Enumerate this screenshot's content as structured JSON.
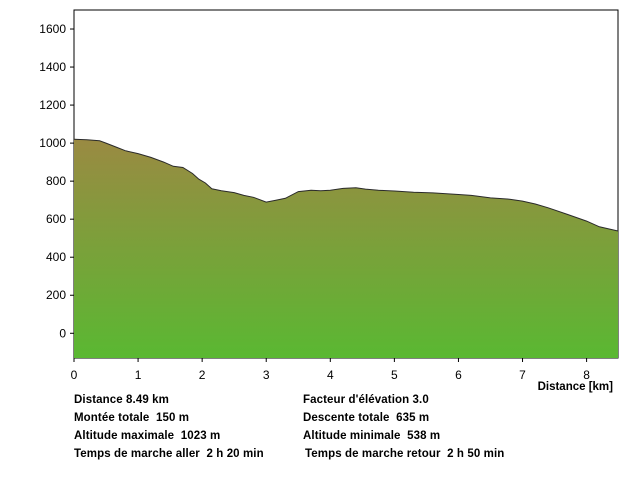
{
  "chart_data": {
    "type": "area",
    "xlabel": "Distance [km]",
    "ylabel": "",
    "xlim": [
      0,
      8.49
    ],
    "ylim": [
      -130,
      1700
    ],
    "x_ticks": [
      0,
      1,
      2,
      3,
      4,
      5,
      6,
      7,
      8
    ],
    "y_ticks": [
      0,
      200,
      400,
      600,
      800,
      1000,
      1200,
      1400,
      1600
    ],
    "grid": false,
    "fill_gradient": {
      "top": "#9a8a42",
      "bottom": "#5ab832"
    },
    "series": [
      {
        "x": [
          0,
          0.2,
          0.4,
          0.5,
          0.65,
          0.8,
          1.0,
          1.2,
          1.4,
          1.55,
          1.7,
          1.85,
          1.95,
          2.05,
          2.15,
          2.3,
          2.5,
          2.65,
          2.8,
          3.0,
          3.15,
          3.3,
          3.5,
          3.7,
          3.85,
          4.0,
          4.2,
          4.4,
          4.55,
          4.75,
          5.0,
          5.3,
          5.6,
          6.0,
          6.2,
          6.5,
          6.8,
          7.0,
          7.2,
          7.4,
          7.7,
          8.0,
          8.2,
          8.49
        ],
        "y": [
          1020,
          1018,
          1012,
          1000,
          980,
          960,
          945,
          925,
          900,
          878,
          872,
          840,
          810,
          790,
          760,
          750,
          740,
          725,
          715,
          690,
          700,
          710,
          745,
          752,
          750,
          752,
          762,
          765,
          758,
          752,
          748,
          742,
          738,
          730,
          725,
          712,
          705,
          695,
          680,
          660,
          625,
          590,
          560,
          538
        ]
      }
    ]
  },
  "stats": {
    "distance": "Distance 8.49 km",
    "elevation_factor": "Facteur d'élévation 3.0",
    "total_ascent": "Montée totale  150 m",
    "total_descent": "Descente totale  635 m",
    "max_altitude": "Altitude maximale  1023 m",
    "min_altitude": "Altitude minimale  538 m",
    "walk_time_out": "Temps de marche aller  2 h 20 min",
    "walk_time_return": "Temps de marche retour  2 h 50 min"
  }
}
